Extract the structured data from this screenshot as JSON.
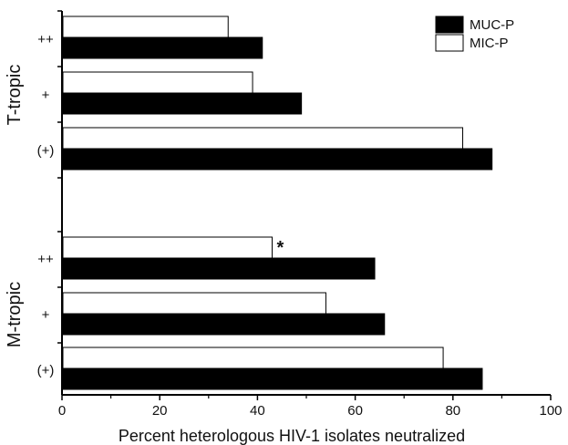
{
  "chart_data": {
    "type": "bar",
    "orientation": "horizontal",
    "xlabel": "Percent heterologous HIV-1 isolates neutralized",
    "xlim": [
      0,
      100
    ],
    "xticks": [
      "0",
      "20",
      "40",
      "60",
      "80",
      "100"
    ],
    "groups": [
      {
        "name": "T-tropic",
        "categories": [
          "++",
          "+",
          "(+)"
        ],
        "series": [
          {
            "name": "MUC-P",
            "color": "#000000",
            "values": [
              41,
              49,
              88
            ]
          },
          {
            "name": "MIC-P",
            "color": "#ffffff",
            "values": [
              34,
              39,
              82
            ]
          }
        ]
      },
      {
        "name": "M-tropic",
        "categories": [
          "++",
          "+",
          "(+)"
        ],
        "series": [
          {
            "name": "MUC-P",
            "color": "#000000",
            "values": [
              64,
              66,
              86
            ]
          },
          {
            "name": "MIC-P",
            "color": "#ffffff",
            "values": [
              43,
              54,
              78
            ]
          }
        ]
      }
    ],
    "annotations": [
      {
        "text": "*",
        "group": "M-tropic",
        "category": "++",
        "series": "MIC-P"
      }
    ],
    "legend": {
      "placement": "top-right",
      "entries": [
        "MUC-P",
        "MIC-P"
      ]
    },
    "grid": false
  }
}
